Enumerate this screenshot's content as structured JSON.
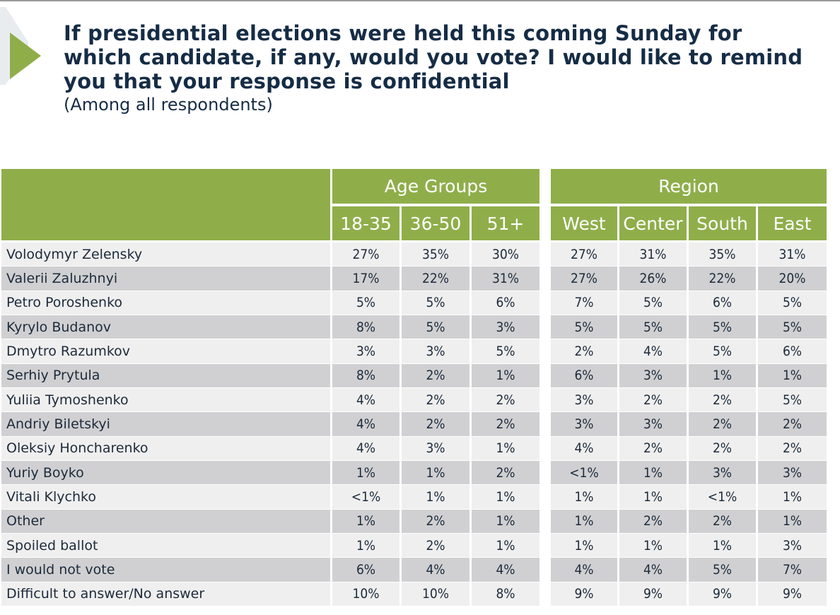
{
  "title": "If presidential elections were held this coming Sunday for which candidate, if any, would you vote? I would like to remind you that your response is confidential",
  "subtitle": "(Among all respondents)",
  "colors": {
    "header_green": "#8fae4a",
    "row_light": "#efefef",
    "row_dark": "#d0d0d2",
    "title_navy": "#162c45"
  },
  "chart_data": {
    "type": "table",
    "title": "If presidential elections were held this coming Sunday for which candidate, if any, would you vote? I would like to remind you that your response is confidential",
    "subtitle": "(Among all respondents)",
    "groups": [
      {
        "name": "Age Groups",
        "columns": [
          "18-35",
          "36-50",
          "51+"
        ]
      },
      {
        "name": "Region",
        "columns": [
          "West",
          "Center",
          "South",
          "East"
        ]
      }
    ],
    "rows": [
      {
        "label": "Volodymyr Zelensky",
        "values": [
          "27%",
          "35%",
          "30%",
          "27%",
          "31%",
          "35%",
          "31%"
        ]
      },
      {
        "label": "Valerii Zaluzhnyi",
        "values": [
          "17%",
          "22%",
          "31%",
          "27%",
          "26%",
          "22%",
          "20%"
        ]
      },
      {
        "label": "Petro Poroshenko",
        "values": [
          "5%",
          "5%",
          "6%",
          "7%",
          "5%",
          "6%",
          "5%"
        ]
      },
      {
        "label": "Kyrylo Budanov",
        "values": [
          "8%",
          "5%",
          "3%",
          "5%",
          "5%",
          "5%",
          "5%"
        ]
      },
      {
        "label": "Dmytro Razumkov",
        "values": [
          "3%",
          "3%",
          "5%",
          "2%",
          "4%",
          "5%",
          "6%"
        ]
      },
      {
        "label": "Serhiy Prytula",
        "values": [
          "8%",
          "2%",
          "1%",
          "6%",
          "3%",
          "1%",
          "1%"
        ]
      },
      {
        "label": "Yuliia Tymoshenko",
        "values": [
          "4%",
          "2%",
          "2%",
          "3%",
          "2%",
          "2%",
          "5%"
        ]
      },
      {
        "label": "Andriy Biletskyi",
        "values": [
          "4%",
          "2%",
          "2%",
          "3%",
          "3%",
          "2%",
          "2%"
        ]
      },
      {
        "label": "Oleksiy Honcharenko",
        "values": [
          "4%",
          "3%",
          "1%",
          "4%",
          "2%",
          "2%",
          "2%"
        ]
      },
      {
        "label": "Yuriy Boyko",
        "values": [
          "1%",
          "1%",
          "2%",
          "<1%",
          "1%",
          "3%",
          "3%"
        ]
      },
      {
        "label": "Vitali Klychko",
        "values": [
          "<1%",
          "1%",
          "1%",
          "1%",
          "1%",
          "<1%",
          "1%"
        ]
      },
      {
        "label": "Other",
        "values": [
          "1%",
          "2%",
          "1%",
          "1%",
          "2%",
          "2%",
          "1%"
        ]
      },
      {
        "label": "Spoiled ballot",
        "values": [
          "1%",
          "2%",
          "1%",
          "1%",
          "1%",
          "1%",
          "3%"
        ]
      },
      {
        "label": "I would not vote",
        "values": [
          "6%",
          "4%",
          "4%",
          "4%",
          "4%",
          "5%",
          "7%"
        ]
      },
      {
        "label": "Difficult to answer/No answer",
        "values": [
          "10%",
          "10%",
          "8%",
          "9%",
          "9%",
          "9%",
          "9%"
        ]
      }
    ]
  }
}
